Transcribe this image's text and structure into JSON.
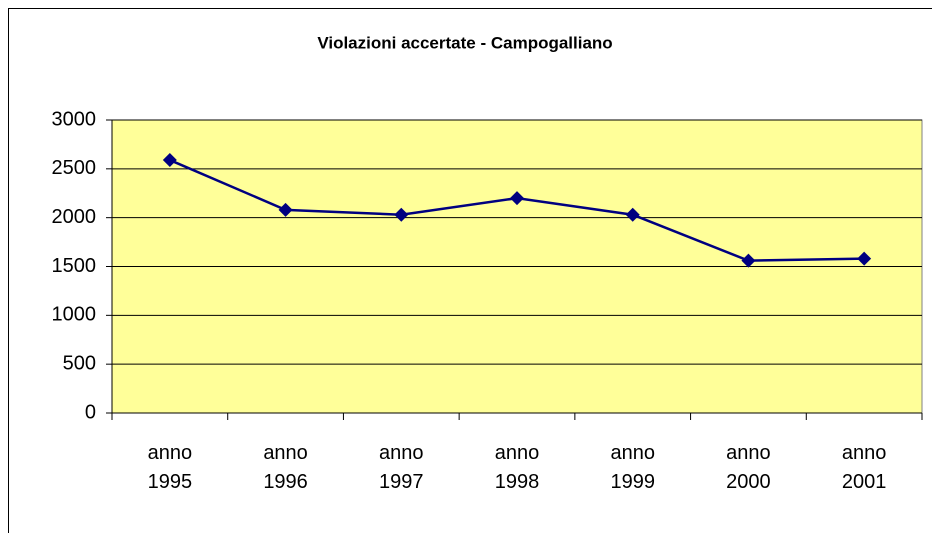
{
  "chart_data": {
    "type": "line",
    "title": "Violazioni accertate - Campogalliano",
    "categories": [
      "anno 1995",
      "anno 1996",
      "anno 1997",
      "anno 1998",
      "anno 1999",
      "anno 2000",
      "anno 2001"
    ],
    "series": [
      {
        "name": "Violazioni accertate",
        "color": "#000080",
        "values": [
          2590,
          2080,
          2030,
          2200,
          2030,
          1560,
          1580
        ]
      }
    ],
    "ylim": [
      0,
      3000
    ],
    "yticks": [
      0,
      500,
      1000,
      1500,
      2000,
      2500,
      3000
    ],
    "grid": true,
    "plot_background": "#ffff99"
  }
}
